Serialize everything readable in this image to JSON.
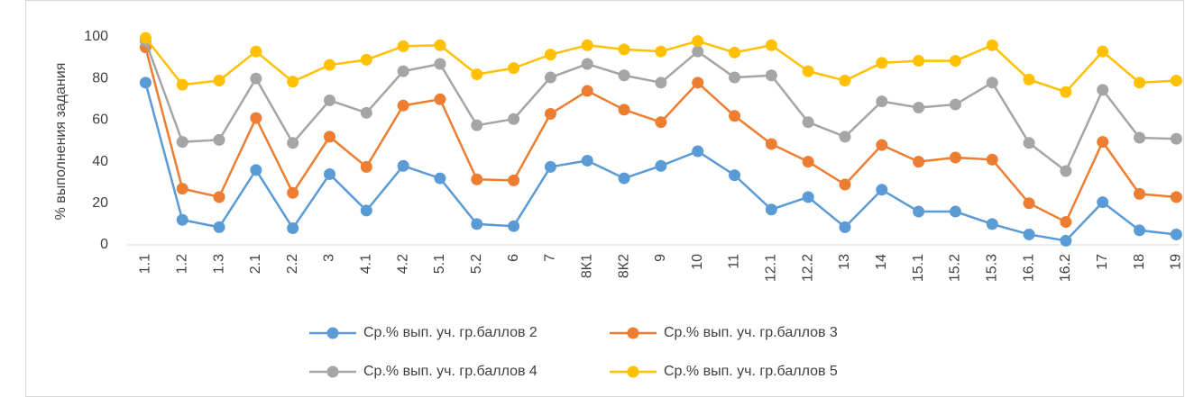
{
  "chart_data": {
    "type": "line",
    "y_label": "% выполнения задания",
    "categories": [
      "1.1",
      "1.2",
      "1.3",
      "2.1",
      "2.2",
      "3",
      "4.1",
      "4.2",
      "5.1",
      "5.2",
      "6",
      "7",
      "8К1",
      "8К2",
      "9",
      "10",
      "11",
      "12.1",
      "12.2",
      "13",
      "14",
      "15.1",
      "15.2",
      "15.3",
      "16.1",
      "16.2",
      "17",
      "18",
      "19"
    ],
    "series": [
      {
        "name": "Ср.% вып. уч. гр.баллов 2",
        "color": "#5b9bd5",
        "values": [
          78,
          12,
          8.5,
          36,
          8,
          34,
          16.5,
          38,
          32,
          10,
          9,
          37.5,
          40.5,
          32,
          38,
          45,
          33.5,
          17,
          23,
          8.5,
          26.5,
          16,
          16,
          10,
          5,
          2,
          20.5,
          7,
          5
        ]
      },
      {
        "name": "Ср.% вып. уч. гр.баллов 3",
        "color": "#ed7d31",
        "values": [
          95,
          27,
          23,
          61,
          25,
          52,
          37.5,
          67,
          70,
          31.5,
          31,
          63,
          74,
          65,
          59,
          78,
          62,
          48.5,
          40,
          29,
          48,
          40,
          42,
          41,
          20,
          11,
          49.5,
          24.5,
          23
        ]
      },
      {
        "name": "Ср.% вып. уч. гр.баллов 4",
        "color": "#a5a5a5",
        "values": [
          98,
          49.5,
          50.5,
          80,
          49,
          69.5,
          63.5,
          83.5,
          87,
          57.5,
          60.5,
          80.5,
          87,
          81.5,
          78,
          93,
          80.5,
          81.5,
          59,
          52,
          69,
          66,
          67.5,
          78,
          49,
          35.5,
          74.5,
          51.5,
          51
        ]
      },
      {
        "name": "Ср.% вып. уч. гр.баллов 5",
        "color": "#ffc000",
        "values": [
          99.5,
          77,
          79,
          93,
          78.5,
          86.5,
          89,
          95.5,
          96,
          82,
          85,
          91.5,
          96,
          94,
          93,
          98,
          92.5,
          96,
          83.5,
          79,
          87.5,
          88.5,
          88.5,
          96,
          79.5,
          73.5,
          93,
          78,
          79
        ]
      }
    ],
    "ylim": [
      0,
      100
    ],
    "yticks": [
      0,
      20,
      40,
      60,
      80,
      100
    ],
    "grid": false,
    "legend": "bottom"
  }
}
